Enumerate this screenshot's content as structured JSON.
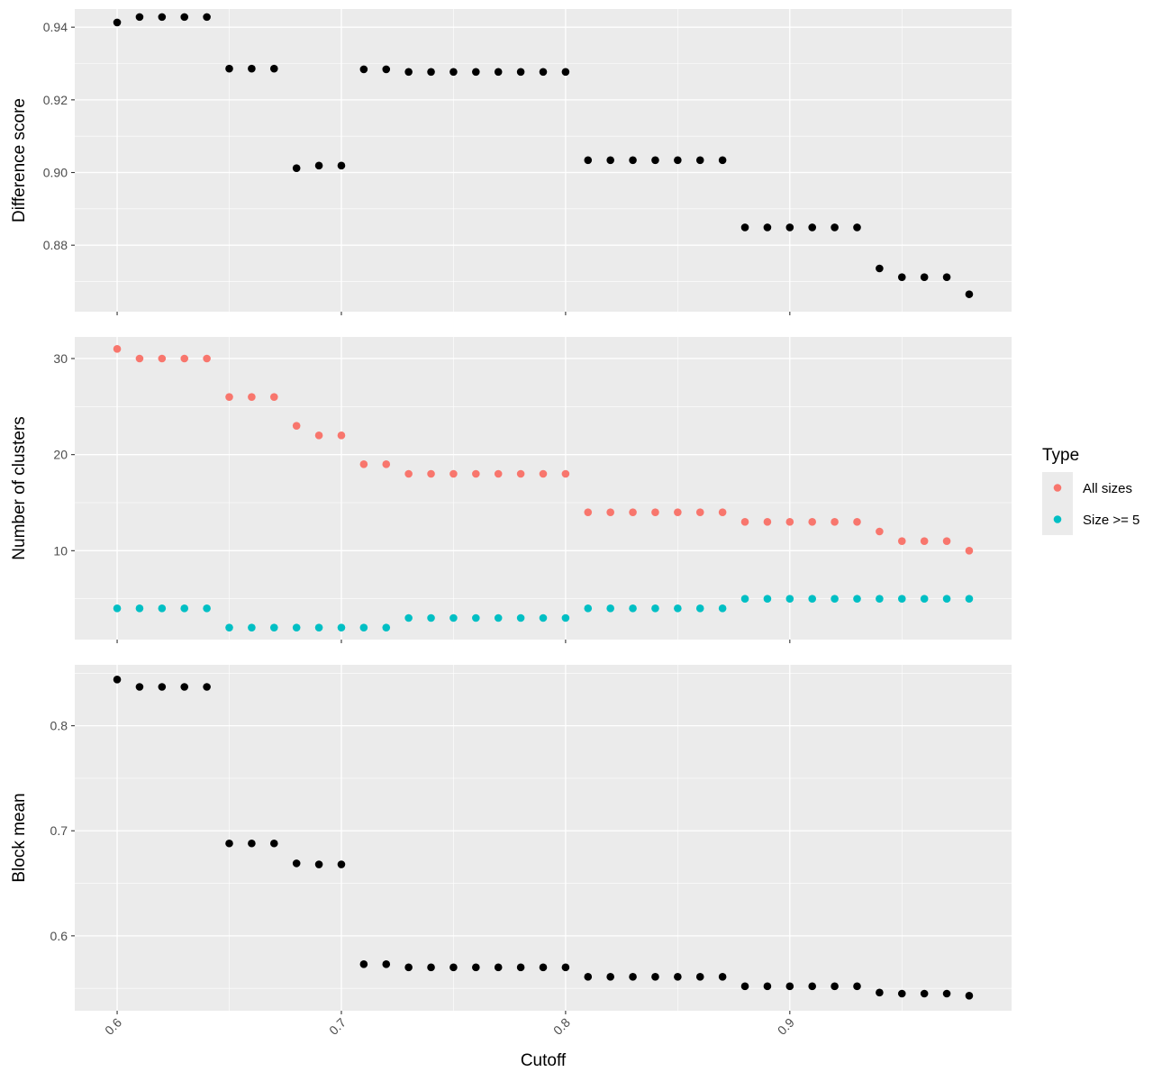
{
  "chart_data": {
    "type": "scatter",
    "x_title": "Cutoff",
    "x_ticks": [
      "0.6",
      "0.7",
      "0.8",
      "0.9"
    ],
    "x_range": [
      0.5811,
      0.9989
    ],
    "x": [
      0.6,
      0.61,
      0.62,
      0.63,
      0.64,
      0.65,
      0.66,
      0.67,
      0.68,
      0.69,
      0.7,
      0.71,
      0.72,
      0.73,
      0.74,
      0.75,
      0.76,
      0.77,
      0.78,
      0.79,
      0.8,
      0.81,
      0.82,
      0.83,
      0.84,
      0.85,
      0.86,
      0.87,
      0.88,
      0.89,
      0.9,
      0.91,
      0.92,
      0.93,
      0.94,
      0.95,
      0.96,
      0.97,
      0.98
    ],
    "panels": [
      {
        "ylabel": "Difference score",
        "ylim": [
          0.8617,
          0.945
        ],
        "yticks": [
          "0.88",
          "0.90",
          "0.92",
          "0.94"
        ],
        "series": [
          {
            "color": "#000000",
            "values": [
              0.9413,
              0.9428,
              0.9428,
              0.9428,
              0.9428,
              0.9286,
              0.9286,
              0.9286,
              0.9012,
              0.9019,
              0.9019,
              0.9284,
              0.9284,
              0.9277,
              0.9277,
              0.9277,
              0.9277,
              0.9277,
              0.9277,
              0.9277,
              0.9277,
              0.9034,
              0.9034,
              0.9034,
              0.9034,
              0.9034,
              0.9034,
              0.9034,
              0.8849,
              0.8849,
              0.8849,
              0.8849,
              0.8849,
              0.8849,
              0.8736,
              0.8712,
              0.8712,
              0.8712,
              0.8665
            ]
          }
        ]
      },
      {
        "ylabel": "Number of clusters",
        "ylim": [
          0.75,
          32.25
        ],
        "yticks": [
          "10",
          "20",
          "30"
        ],
        "series": [
          {
            "name": "All sizes",
            "color": "#F8766D",
            "values": [
              31,
              30,
              30,
              30,
              30,
              26,
              26,
              26,
              23,
              22,
              22,
              19,
              19,
              18,
              18,
              18,
              18,
              18,
              18,
              18,
              18,
              14,
              14,
              14,
              14,
              14,
              14,
              14,
              13,
              13,
              13,
              13,
              13,
              13,
              12,
              11,
              11,
              11,
              10
            ]
          },
          {
            "name": "Size >= 5",
            "color": "#00BFC4",
            "values": [
              4,
              4,
              4,
              4,
              4,
              2,
              2,
              2,
              2,
              2,
              2,
              2,
              2,
              3,
              3,
              3,
              3,
              3,
              3,
              3,
              3,
              4,
              4,
              4,
              4,
              4,
              4,
              4,
              5,
              5,
              5,
              5,
              5,
              5,
              5,
              5,
              5,
              5,
              5
            ]
          }
        ]
      },
      {
        "ylabel": "Block mean",
        "ylim": [
          0.5287,
          0.858
        ],
        "yticks": [
          "0.6",
          "0.7",
          "0.8"
        ],
        "series": [
          {
            "color": "#000000",
            "values": [
              0.844,
              0.837,
              0.837,
              0.837,
              0.837,
              0.688,
              0.688,
              0.688,
              0.669,
              0.668,
              0.668,
              0.573,
              0.573,
              0.57,
              0.57,
              0.57,
              0.57,
              0.57,
              0.57,
              0.57,
              0.57,
              0.561,
              0.561,
              0.561,
              0.561,
              0.561,
              0.561,
              0.561,
              0.552,
              0.552,
              0.552,
              0.552,
              0.552,
              0.552,
              0.546,
              0.545,
              0.545,
              0.545,
              0.543
            ]
          }
        ]
      }
    ],
    "legend": {
      "title": "Type",
      "items": [
        {
          "label": "All sizes",
          "color": "#F8766D"
        },
        {
          "label": "Size >= 5",
          "color": "#00BFC4"
        }
      ],
      "placement": "right"
    },
    "panel_background": "#EBEBEB",
    "grid": true
  }
}
